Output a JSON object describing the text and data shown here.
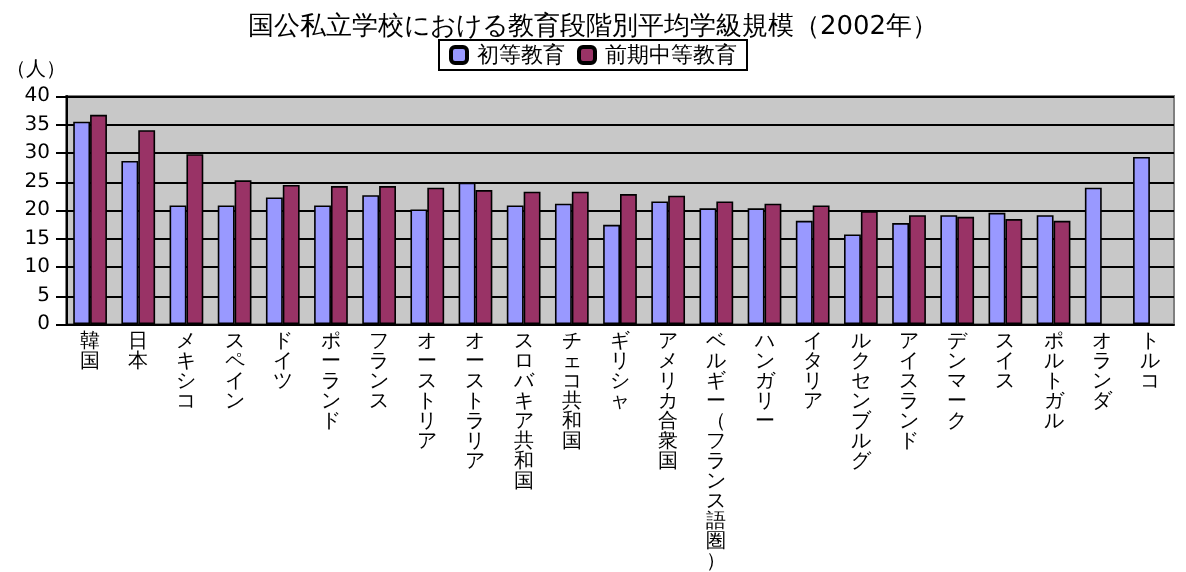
{
  "chart_data": {
    "type": "bar",
    "title": "国公私立学校における教育段階別平均学級規模（2002年）",
    "ylabel": "（人）",
    "categories": [
      "韓国",
      "日本",
      "メキシコ",
      "スペイン",
      "ドイツ",
      "ポーランド",
      "フランス",
      "オーストリア",
      "オーストラリア",
      "スロバキア共和国",
      "チェコ共和国",
      "ギリシャ",
      "アメリカ合衆国",
      "ベルギー（フランス語圏）",
      "ハンガリー",
      "イタリア",
      "ルクセンブルグ",
      "アイスランド",
      "デンマーク",
      "スイス",
      "ポルトガル",
      "オランダ",
      "トルコ"
    ],
    "series": [
      {
        "name": "初等教育",
        "color": "#9999ff",
        "values": [
          35.5,
          28.6,
          20.8,
          20.8,
          22.2,
          20.8,
          22.6,
          20.1,
          24.8,
          20.8,
          21.1,
          17.4,
          21.5,
          20.3,
          20.3,
          18.1,
          15.7,
          17.7,
          19.1,
          19.5,
          19.1,
          23.9,
          29.3
        ]
      },
      {
        "name": "前期中等教育",
        "color": "#993366",
        "values": [
          36.7,
          34.0,
          29.8,
          25.2,
          24.4,
          24.2,
          24.2,
          23.9,
          23.5,
          23.2,
          23.2,
          22.8,
          22.5,
          21.5,
          21.1,
          20.8,
          19.8,
          19.1,
          18.8,
          18.4,
          18.1,
          null,
          null
        ]
      }
    ],
    "ylim": [
      0,
      40
    ],
    "yticks": [
      0,
      5,
      10,
      15,
      20,
      25,
      30,
      35,
      40
    ],
    "grid": "y",
    "legend": "top"
  }
}
